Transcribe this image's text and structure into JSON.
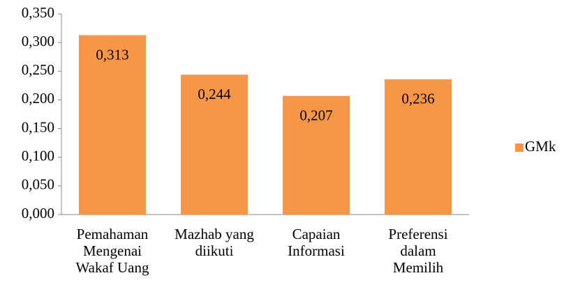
{
  "chart_data": {
    "type": "bar",
    "categories": [
      [
        "Pemahaman",
        "Mengenai",
        "Wakaf Uang"
      ],
      [
        "Mazhab yang",
        "diikuti"
      ],
      [
        "Capaian",
        "Informasi"
      ],
      [
        "Preferensi",
        "dalam",
        "Memilih"
      ]
    ],
    "series": [
      {
        "name": "GMk",
        "color": "#f79646",
        "values": [
          0.313,
          0.244,
          0.207,
          0.236
        ],
        "value_labels": [
          "0,313",
          "0,244",
          "0,207",
          "0,236"
        ]
      }
    ],
    "ylim": [
      0,
      0.35
    ],
    "yticks": [
      {
        "value": 0,
        "label": "0,000"
      },
      {
        "value": 0.05,
        "label": "0,050"
      },
      {
        "value": 0.1,
        "label": "0,100"
      },
      {
        "value": 0.15,
        "label": "0,150"
      },
      {
        "value": 0.2,
        "label": "0,200"
      },
      {
        "value": 0.25,
        "label": "0,250"
      },
      {
        "value": 0.3,
        "label": "0,300"
      },
      {
        "value": 0.35,
        "label": "0,350"
      }
    ],
    "legend": "right"
  }
}
